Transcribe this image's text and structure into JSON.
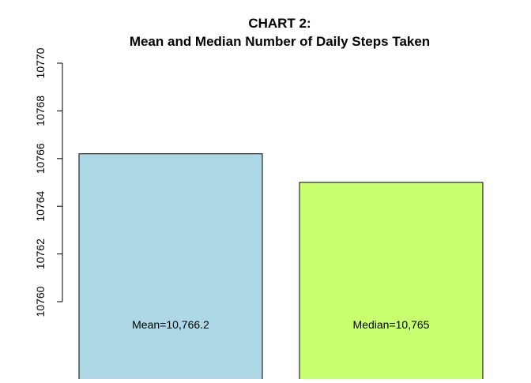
{
  "chart_data": {
    "type": "bar",
    "title": "CHART 2:",
    "subtitle": "Mean and Median Number of Daily Steps Taken",
    "categories": [
      "Mean",
      "Median"
    ],
    "values": [
      10766.2,
      10765
    ],
    "bar_labels": [
      "Mean=10,766.2",
      "Median=10,765"
    ],
    "colors": [
      "#add8e6",
      "#c8ff6e"
    ],
    "xlabel": "",
    "ylabel": "",
    "ylim": [
      10760,
      10770
    ],
    "yticks": [
      10760,
      10762,
      10764,
      10766,
      10768,
      10770
    ],
    "ytick_labels": [
      "10760",
      "10762",
      "10764",
      "10766",
      "10768",
      "10770"
    ],
    "grid": false,
    "legend": "none"
  }
}
